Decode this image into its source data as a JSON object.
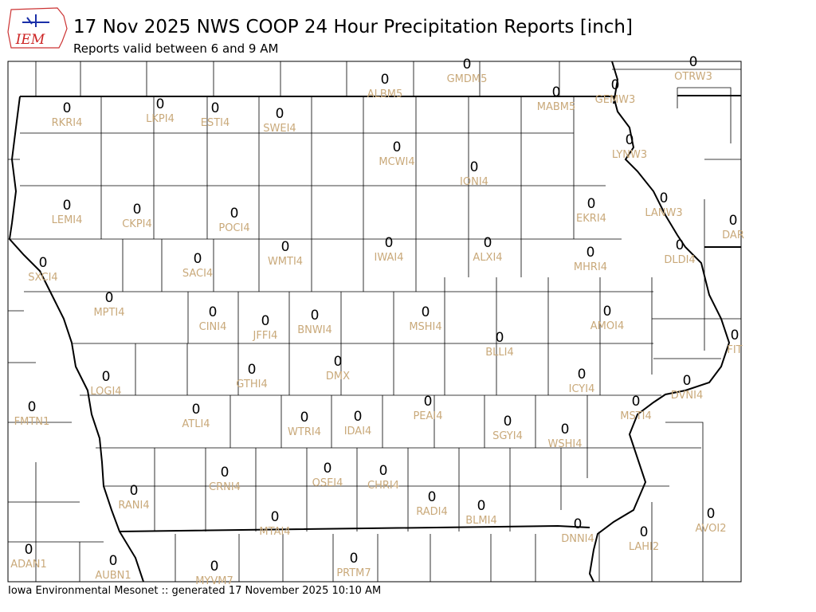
{
  "logo": "IEM",
  "header": {
    "title": "17 Nov 2025 NWS COOP 24 Hour Precipitation Reports [inch]",
    "subtitle": "Reports valid between 6 and 9 AM"
  },
  "footer": "Iowa Environmental Mesonet :: generated 17 November 2025 10:10 AM",
  "stations": [
    {
      "id": "ALBM5",
      "value": 0
    },
    {
      "id": "GMDM5",
      "value": 0
    },
    {
      "id": "OTRW3",
      "value": 0
    },
    {
      "id": "MABM5",
      "value": 0
    },
    {
      "id": "GEMW3",
      "value": 0
    },
    {
      "id": "RKRI4",
      "value": 0
    },
    {
      "id": "LKPI4",
      "value": 0
    },
    {
      "id": "ESTI4",
      "value": 0
    },
    {
      "id": "SWEI4",
      "value": 0
    },
    {
      "id": "MCWI4",
      "value": 0
    },
    {
      "id": "IONI4",
      "value": 0
    },
    {
      "id": "LYNW3",
      "value": 0
    },
    {
      "id": "LEMI4",
      "value": 0
    },
    {
      "id": "CKPI4",
      "value": 0
    },
    {
      "id": "POCI4",
      "value": 0
    },
    {
      "id": "EKRI4",
      "value": 0
    },
    {
      "id": "LANW3",
      "value": 0
    },
    {
      "id": "DAR",
      "value": 0
    },
    {
      "id": "WMTI4",
      "value": 0
    },
    {
      "id": "IWAI4",
      "value": 0
    },
    {
      "id": "ALXI4",
      "value": 0
    },
    {
      "id": "MHRI4",
      "value": 0
    },
    {
      "id": "DLDI4",
      "value": 0
    },
    {
      "id": "SXCI4",
      "value": 0
    },
    {
      "id": "SACI4",
      "value": 0
    },
    {
      "id": "MPTI4",
      "value": 0
    },
    {
      "id": "CINI4",
      "value": 0
    },
    {
      "id": "JFFI4",
      "value": 0
    },
    {
      "id": "BNWI4",
      "value": 0
    },
    {
      "id": "MSHI4",
      "value": 0
    },
    {
      "id": "AMOI4",
      "value": 0
    },
    {
      "id": "FIT",
      "value": 0
    },
    {
      "id": "BLLI4",
      "value": 0
    },
    {
      "id": "DMX",
      "value": 0
    },
    {
      "id": "GTHI4",
      "value": 0
    },
    {
      "id": "LOGI4",
      "value": 0
    },
    {
      "id": "ICYI4",
      "value": 0
    },
    {
      "id": "DVNI4",
      "value": 0
    },
    {
      "id": "FMTN1",
      "value": 0
    },
    {
      "id": "ATLI4",
      "value": 0
    },
    {
      "id": "PEAI4",
      "value": 0
    },
    {
      "id": "MSTI4",
      "value": 0
    },
    {
      "id": "WTRI4",
      "value": 0
    },
    {
      "id": "IDAI4",
      "value": 0
    },
    {
      "id": "SGYI4",
      "value": 0
    },
    {
      "id": "WSHI4",
      "value": 0
    },
    {
      "id": "OSEI4",
      "value": 0
    },
    {
      "id": "CHRI4",
      "value": 0
    },
    {
      "id": "CRNI4",
      "value": 0
    },
    {
      "id": "RANI4",
      "value": 0
    },
    {
      "id": "RADI4",
      "value": 0
    },
    {
      "id": "BLMI4",
      "value": 0
    },
    {
      "id": "AVOI2",
      "value": 0
    },
    {
      "id": "MTAI4",
      "value": 0
    },
    {
      "id": "DNNI4",
      "value": 0
    },
    {
      "id": "LAHI2",
      "value": 0
    },
    {
      "id": "ADAN1",
      "value": 0
    },
    {
      "id": "AUBN1",
      "value": 0
    },
    {
      "id": "PRTM7",
      "value": 0
    },
    {
      "id": "MYVM7",
      "value": 0
    }
  ]
}
